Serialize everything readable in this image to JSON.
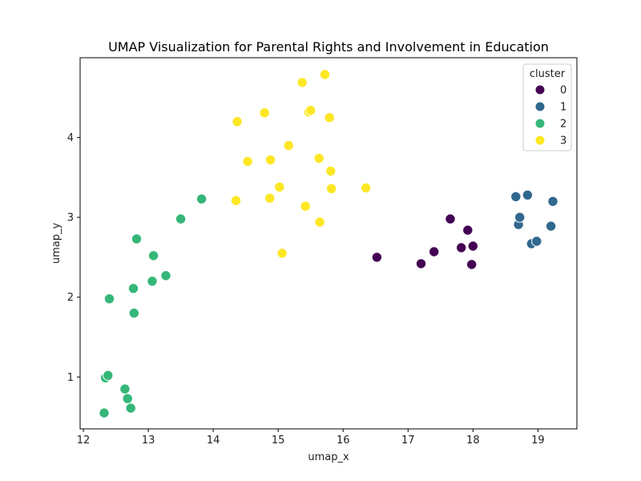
{
  "chart_data": {
    "type": "scatter",
    "title": "UMAP Visualization for Parental Rights and Involvement in Education",
    "xlabel": "umap_x",
    "ylabel": "umap_y",
    "xlim": [
      11.95,
      19.6
    ],
    "ylim": [
      0.35,
      5.0
    ],
    "xticks": [
      12,
      13,
      14,
      15,
      16,
      17,
      18,
      19
    ],
    "yticks": [
      1,
      2,
      3,
      4
    ],
    "grid": false,
    "legend": {
      "title": "cluster",
      "placement": "top-right"
    },
    "colors": {
      "0": "#440154",
      "1": "#31688e",
      "2": "#35b779",
      "3": "#fde725"
    },
    "series": [
      {
        "name": "0",
        "points": [
          [
            16.52,
            2.5
          ],
          [
            17.2,
            2.42
          ],
          [
            17.4,
            2.57
          ],
          [
            17.65,
            2.98
          ],
          [
            17.82,
            2.62
          ],
          [
            17.92,
            2.84
          ],
          [
            17.98,
            2.41
          ],
          [
            18.0,
            2.64
          ]
        ]
      },
      {
        "name": "1",
        "points": [
          [
            18.66,
            3.26
          ],
          [
            18.7,
            2.91
          ],
          [
            18.72,
            3.0
          ],
          [
            18.84,
            3.28
          ],
          [
            18.9,
            2.67
          ],
          [
            18.98,
            2.7
          ],
          [
            19.2,
            2.89
          ],
          [
            19.23,
            3.2
          ]
        ]
      },
      {
        "name": "2",
        "points": [
          [
            12.32,
            0.55
          ],
          [
            12.34,
            0.99
          ],
          [
            12.38,
            1.02
          ],
          [
            12.4,
            1.98
          ],
          [
            12.64,
            0.85
          ],
          [
            12.68,
            0.73
          ],
          [
            12.73,
            0.61
          ],
          [
            12.77,
            2.11
          ],
          [
            12.78,
            1.8
          ],
          [
            12.82,
            2.73
          ],
          [
            13.06,
            2.2
          ],
          [
            13.08,
            2.52
          ],
          [
            13.27,
            2.27
          ],
          [
            13.5,
            2.98
          ],
          [
            13.82,
            3.23
          ]
        ]
      },
      {
        "name": "3",
        "points": [
          [
            14.35,
            3.21
          ],
          [
            14.37,
            4.2
          ],
          [
            14.53,
            3.7
          ],
          [
            14.79,
            4.31
          ],
          [
            14.87,
            3.24
          ],
          [
            14.88,
            3.72
          ],
          [
            15.02,
            3.38
          ],
          [
            15.06,
            2.55
          ],
          [
            15.16,
            3.9
          ],
          [
            15.37,
            4.69
          ],
          [
            15.42,
            3.14
          ],
          [
            15.47,
            4.32
          ],
          [
            15.5,
            4.34
          ],
          [
            15.63,
            3.74
          ],
          [
            15.64,
            2.94
          ],
          [
            15.72,
            4.79
          ],
          [
            15.79,
            4.25
          ],
          [
            15.81,
            3.58
          ],
          [
            15.82,
            3.36
          ],
          [
            16.35,
            3.37
          ]
        ]
      }
    ]
  }
}
